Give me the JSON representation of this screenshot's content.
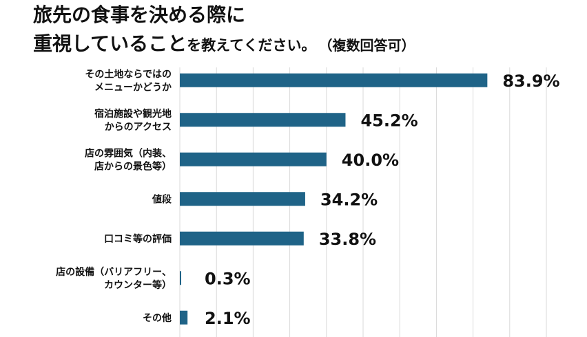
{
  "title": {
    "line1": "旅先の食事を決める際に",
    "line2_large": "重視していること",
    "line2_small": "を教えてください。",
    "note": "（複数回答可）"
  },
  "chart_data": {
    "type": "bar",
    "orientation": "horizontal",
    "title": "旅先の食事を決める際に重視していることを教えてください。（複数回答可）",
    "categories": [
      [
        "その土地ならではの",
        "メニューかどうか"
      ],
      [
        "宿泊施設や観光地",
        "からのアクセス"
      ],
      [
        "店の雰囲気（内装、",
        "店からの景色等）"
      ],
      [
        "値段"
      ],
      [
        "口コミ等の評価"
      ],
      [
        "店の設備（バリアフリー、",
        "カウンター等）"
      ],
      [
        "その他"
      ]
    ],
    "values": [
      83.9,
      45.2,
      40.0,
      34.2,
      33.8,
      0.3,
      2.1
    ],
    "value_labels": [
      "83.9%",
      "45.2%",
      "40.0%",
      "34.2%",
      "33.8%",
      "0.3%",
      "2.1%"
    ],
    "xlim": [
      0,
      100
    ],
    "grid": true,
    "bar_color": "#1f6387",
    "grid_color": "#d9d9d9"
  }
}
